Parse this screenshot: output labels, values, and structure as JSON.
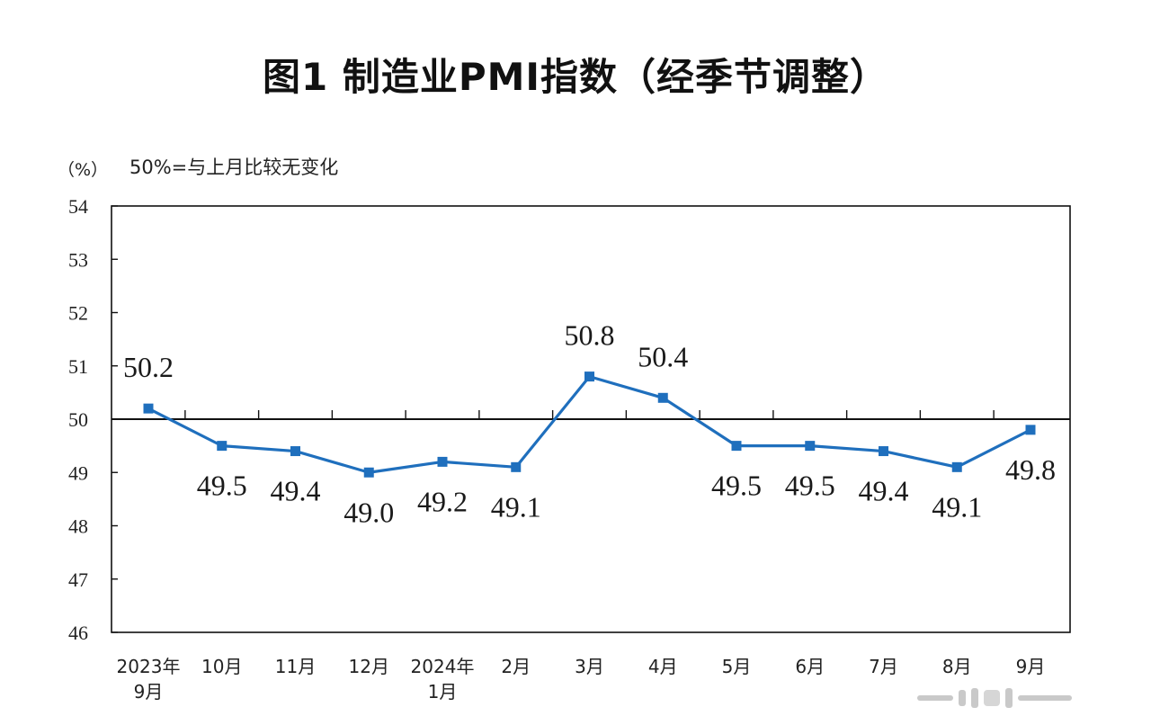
{
  "title": "图1  制造业PMI指数（经季节调整）",
  "y_unit": "（%）",
  "reference_note": "50%=与上月比较无变化",
  "colors": {
    "series": "#1f6fbd",
    "axis": "#111111",
    "reference": "#111111"
  },
  "chart_data": {
    "type": "line",
    "title": "图1  制造业PMI指数（经季节调整）",
    "xlabel": "",
    "ylabel": "（%）",
    "ylim": [
      46,
      54
    ],
    "yticks": [
      46,
      47,
      48,
      49,
      50,
      51,
      52,
      53,
      54
    ],
    "reference_line": 50,
    "grid": false,
    "categories": [
      [
        "2023年",
        "9月"
      ],
      [
        "10月"
      ],
      [
        "11月"
      ],
      [
        "12月"
      ],
      [
        "2024年",
        "1月"
      ],
      [
        "2月"
      ],
      [
        "3月"
      ],
      [
        "4月"
      ],
      [
        "5月"
      ],
      [
        "6月"
      ],
      [
        "7月"
      ],
      [
        "8月"
      ],
      [
        "9月"
      ]
    ],
    "series": [
      {
        "name": "制造业PMI",
        "values": [
          50.2,
          49.5,
          49.4,
          49.0,
          49.2,
          49.1,
          50.8,
          50.4,
          49.5,
          49.5,
          49.4,
          49.1,
          49.8
        ],
        "labels": [
          "50.2",
          "49.5",
          "49.4",
          "49.0",
          "49.2",
          "49.1",
          "50.8",
          "50.4",
          "49.5",
          "49.5",
          "49.4",
          "49.1",
          "49.8"
        ],
        "label_positions": [
          "above",
          "below",
          "below",
          "below",
          "below",
          "below",
          "above",
          "above",
          "below",
          "below",
          "below",
          "below",
          "below"
        ]
      }
    ]
  }
}
